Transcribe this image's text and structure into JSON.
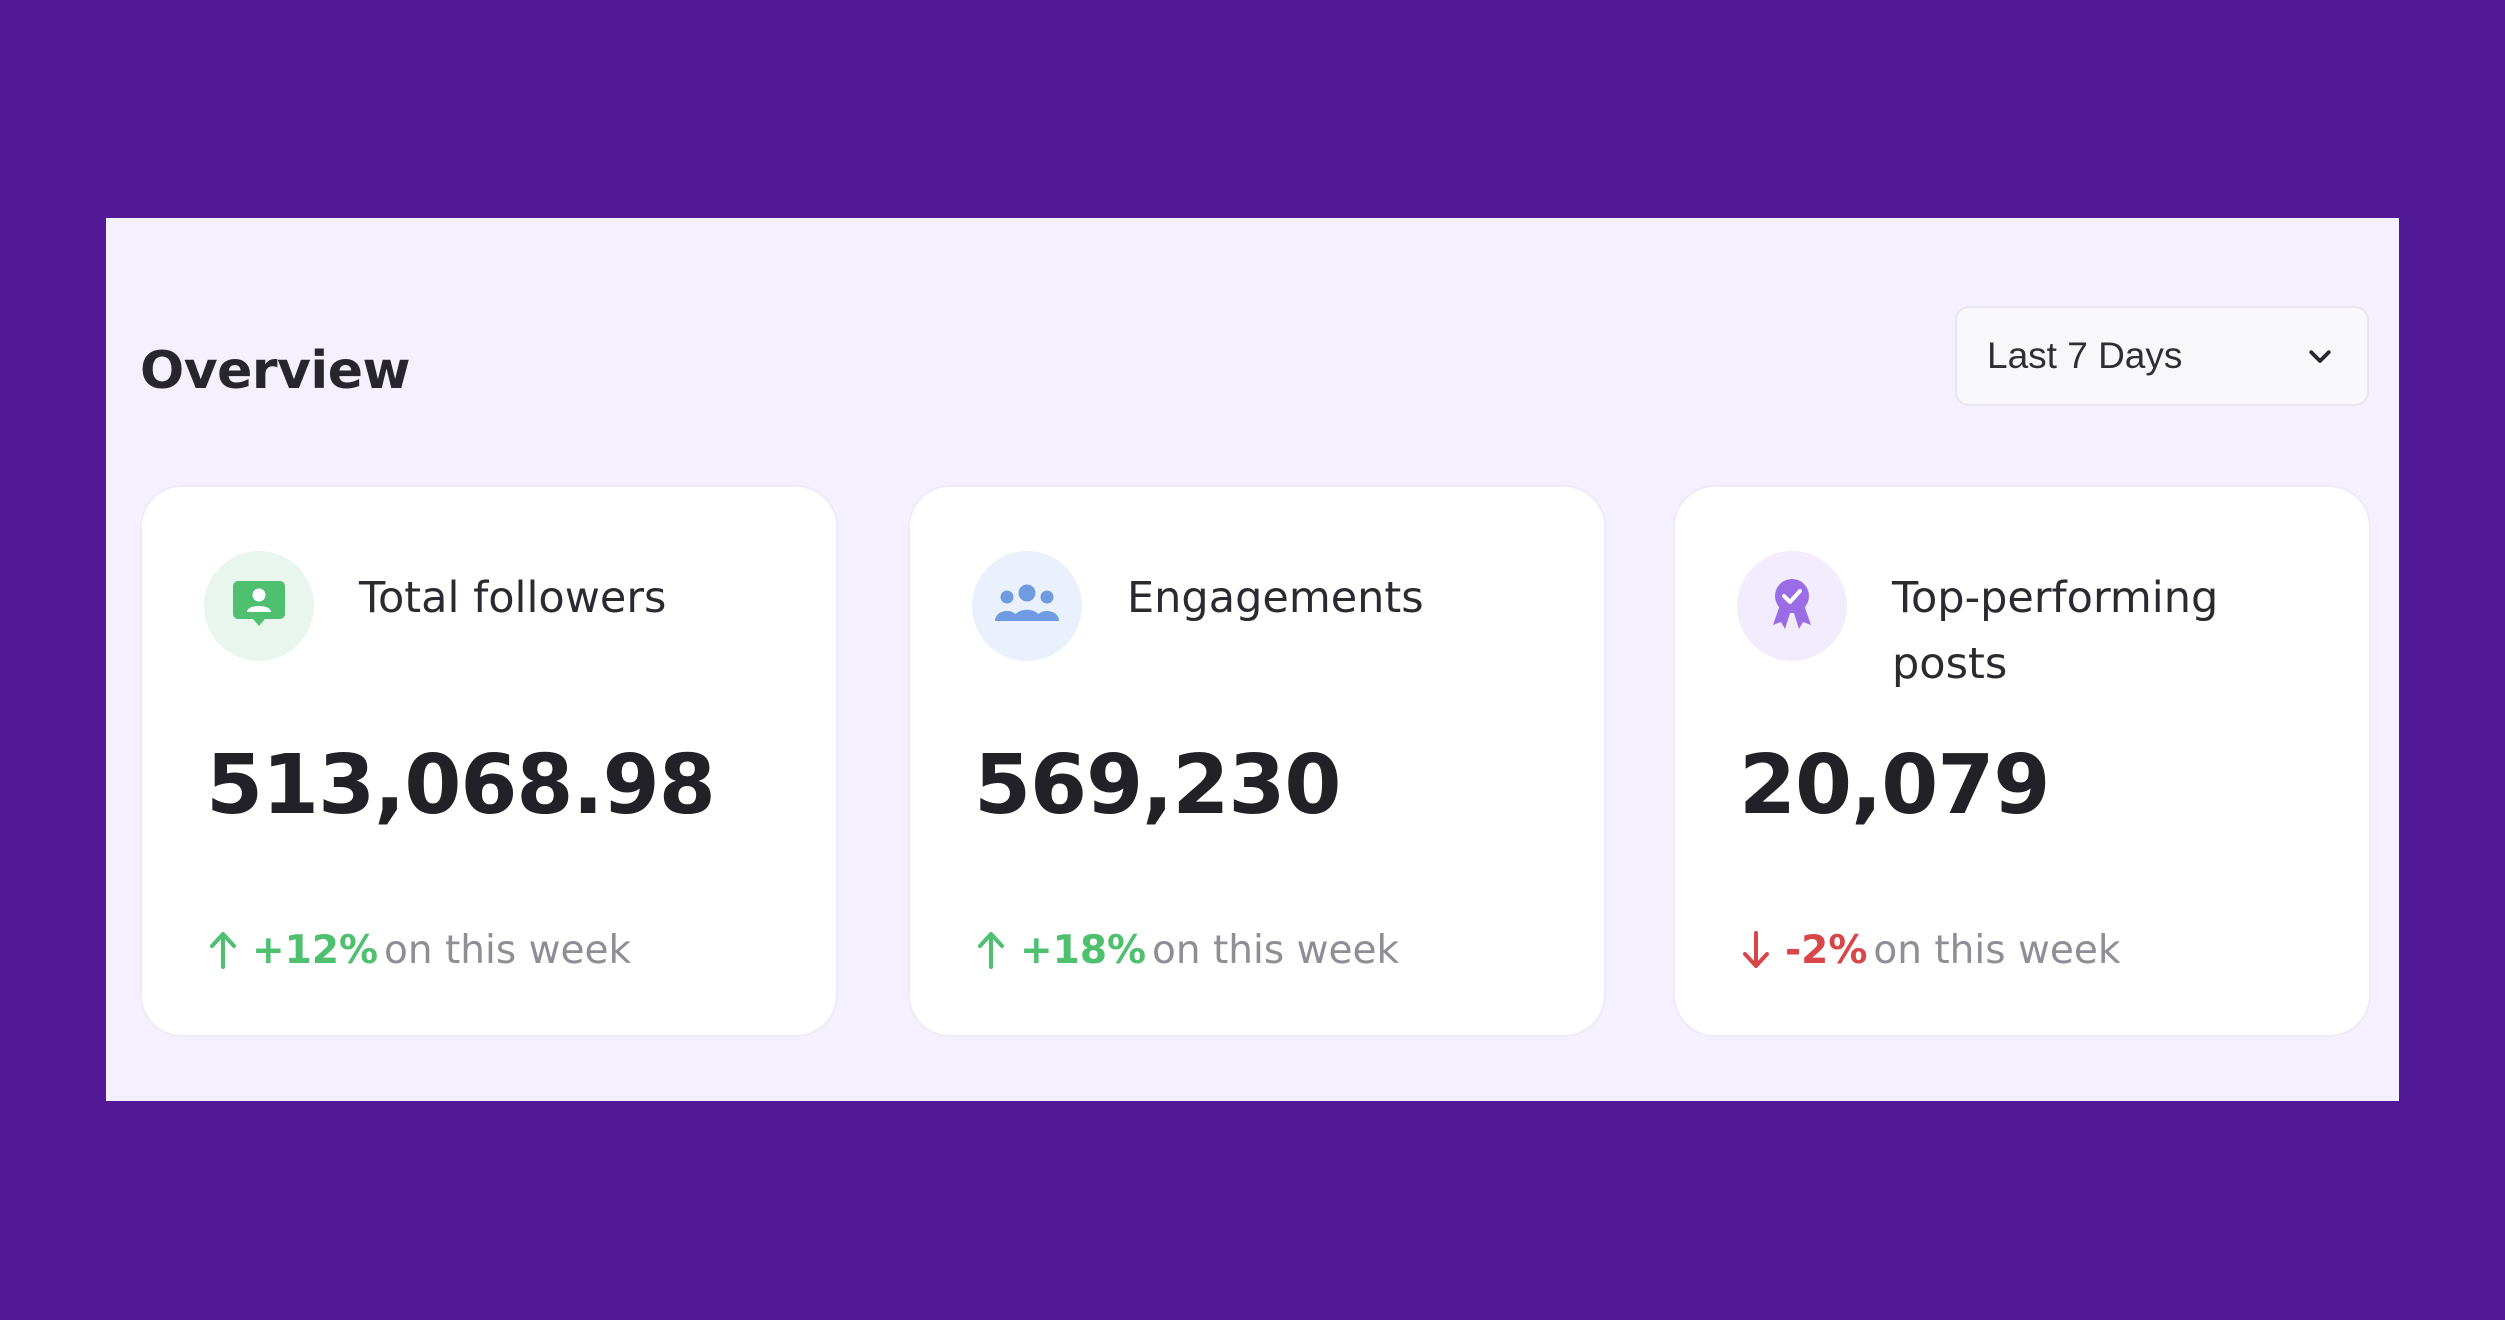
{
  "overview": {
    "title": "Overview",
    "range_select": {
      "value": "Last 7 Days",
      "icon": "chevron-down-icon"
    }
  },
  "cards": [
    {
      "title": "Total followers",
      "value": "513,068.98",
      "delta": "+12%",
      "delta_suffix": "on this week",
      "trend": "up",
      "icon": "follower-badge-icon",
      "accent": "#4fc06f",
      "icon_bg": "#e8f6ee"
    },
    {
      "title": "Engagements",
      "value": "569,230",
      "delta": "+18%",
      "delta_suffix": "on this week",
      "trend": "up",
      "icon": "users-group-icon",
      "accent": "#6f9be3",
      "icon_bg": "#eaf1fc"
    },
    {
      "title": "Top-performing posts",
      "value": "20,079",
      "delta": "-2%",
      "delta_suffix": "on this week",
      "trend": "down",
      "icon": "award-ribbon-icon",
      "accent": "#9a6de6",
      "icon_bg": "#f3ecfc"
    }
  ],
  "colors": {
    "background": "#521996",
    "panel": "#f5f0fd",
    "positive": "#4fc06f",
    "negative": "#d8464a"
  }
}
